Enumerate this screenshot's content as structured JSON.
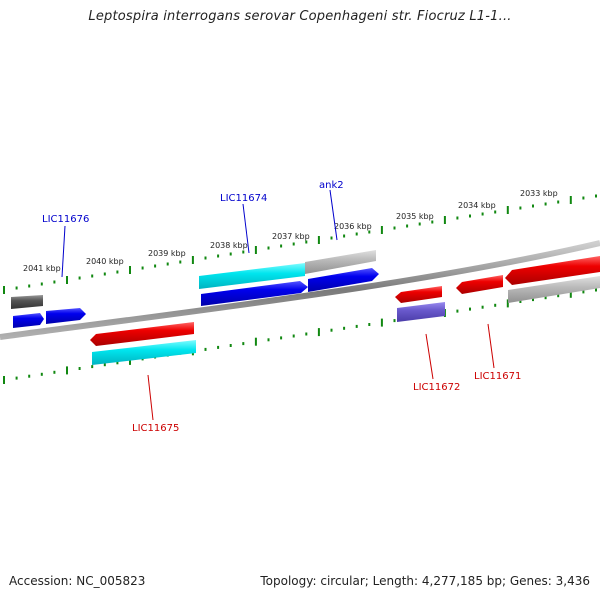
{
  "title": "Leptospira interrogans serovar Copenhageni str. Fiocruz L1-1...",
  "footer": {
    "accession": "Accession: NC_005823",
    "stats": "Topology: circular; Length: 4,277,185 bp; Genes: 3,436"
  },
  "scale_labels": [
    "2041 kbp",
    "2040 kbp",
    "2039 kbp",
    "2038 kbp",
    "2037 kbp",
    "2036 kbp",
    "2035 kbp",
    "2034 kbp",
    "2033 kbp"
  ],
  "gene_labels": {
    "lic11676": "LIC11676",
    "lic11674": "LIC11674",
    "ank2": "ank2",
    "lic11675": "LIC11675",
    "lic11672": "LIC11672",
    "lic11671": "LIC11671"
  },
  "colors": {
    "forward_strand_gene": "#0000ee",
    "reverse_strand_gene": "#ee0000",
    "forward_cds": "#00e5ee",
    "forward_other": "#bbbbbb",
    "reverse_purple": "#6a5acd",
    "scale_tick": "#118811"
  }
}
